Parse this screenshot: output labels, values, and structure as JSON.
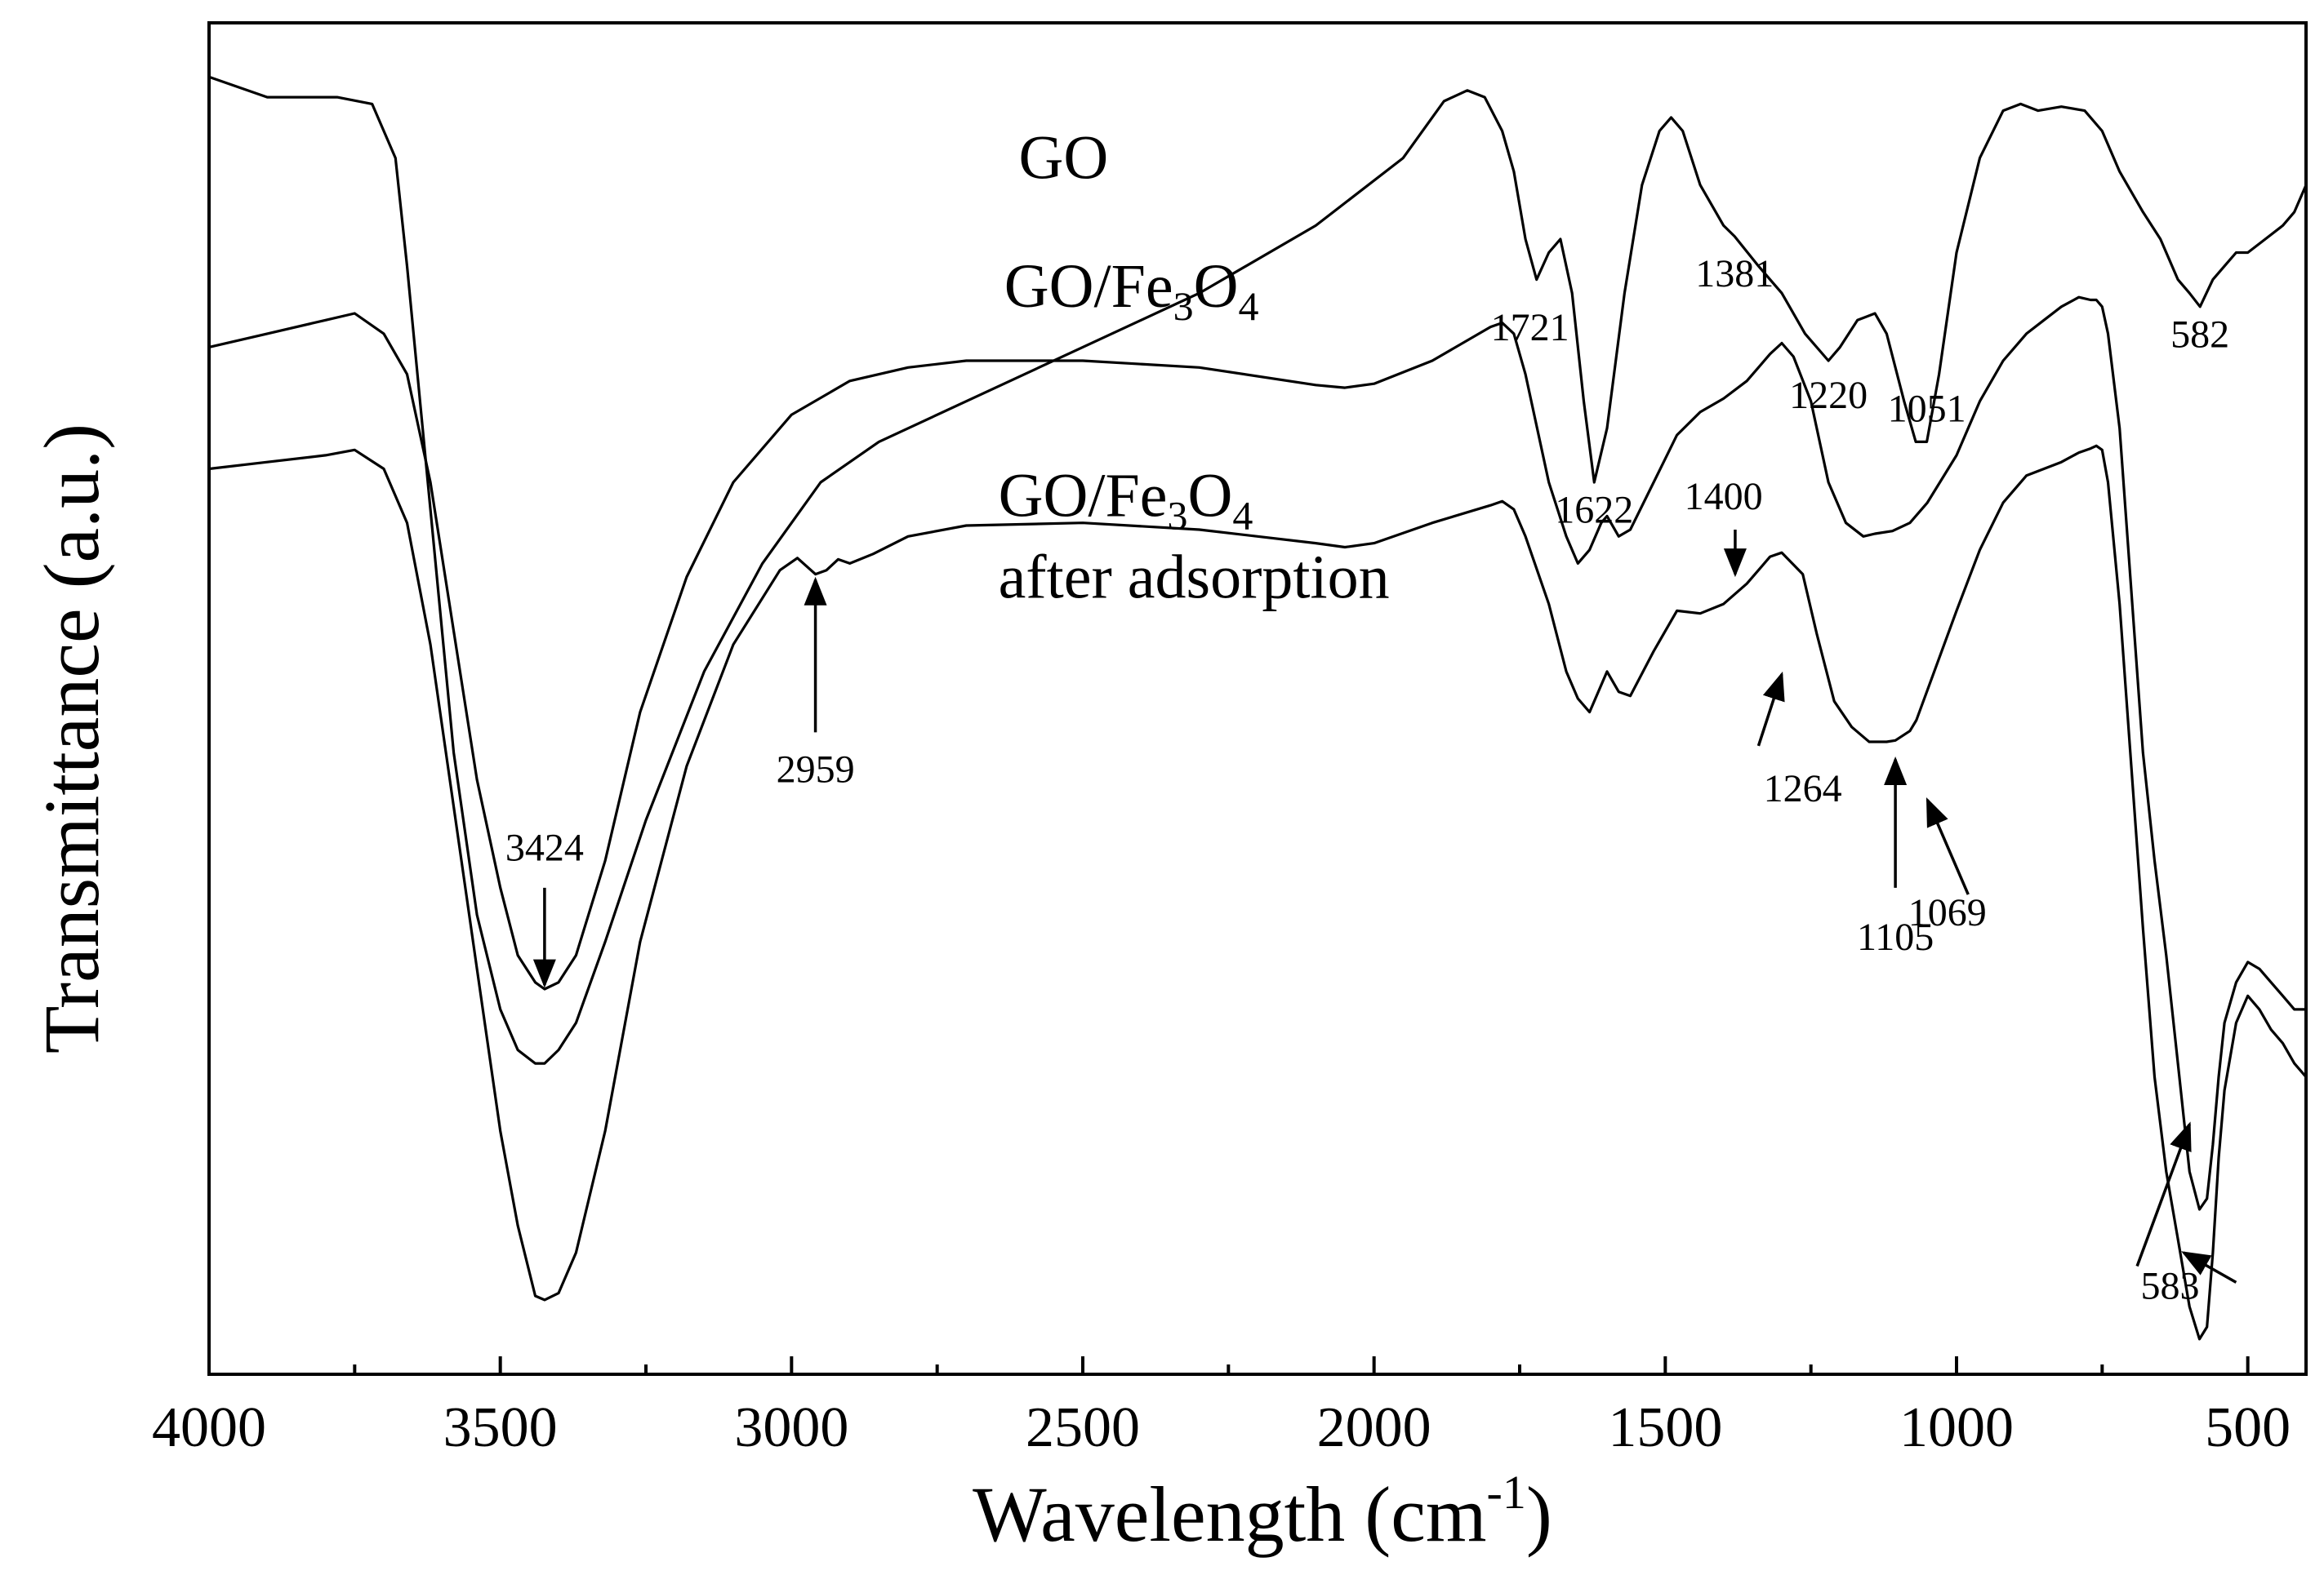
{
  "chart_data": {
    "type": "line",
    "title": "",
    "xlabel": "Wavelength (cm",
    "xlabel_sup": "-1",
    "xlabel_close": ")",
    "ylabel": "Transmittance (a.u.)",
    "xlim": [
      4000,
      400
    ],
    "ylim": [
      0,
      100
    ],
    "x_ticks": [
      4000,
      3500,
      3000,
      2500,
      2000,
      1500,
      1000,
      500
    ],
    "x_tick_labels": [
      "4000",
      "3500",
      "3000",
      "2500",
      "2000",
      "1500",
      "1000",
      "500"
    ],
    "grid": false,
    "series": [
      {
        "name": "GO",
        "label_parts": [
          {
            "text": "GO"
          }
        ],
        "x": [
          4000,
          3900,
          3780,
          3720,
          3680,
          3660,
          3620,
          3580,
          3540,
          3500,
          3470,
          3440,
          3424,
          3400,
          3370,
          3320,
          3250,
          3150,
          3050,
          2950,
          2850,
          2700,
          2500,
          2300,
          2100,
          1950,
          1880,
          1840,
          1810,
          1780,
          1760,
          1740,
          1721,
          1700,
          1680,
          1660,
          1640,
          1622,
          1600,
          1570,
          1540,
          1510,
          1490,
          1470,
          1440,
          1400,
          1381,
          1340,
          1300,
          1260,
          1220,
          1200,
          1170,
          1140,
          1120,
          1090,
          1070,
          1051,
          1030,
          1000,
          960,
          920,
          890,
          860,
          820,
          780,
          750,
          720,
          680,
          650,
          620,
          600,
          582,
          560,
          540,
          520,
          500,
          470,
          440,
          420,
          400
        ],
        "y": [
          96,
          94.5,
          94.5,
          94,
          90,
          82,
          64,
          46,
          34,
          27,
          24,
          23,
          23,
          24,
          26,
          32,
          41,
          52,
          60,
          66,
          69,
          72,
          76,
          80,
          85,
          90,
          94.2,
          95,
          94.5,
          92,
          89,
          84,
          81,
          83,
          84,
          80,
          72,
          66,
          70,
          80,
          88,
          92,
          93,
          92,
          88,
          85,
          84.2,
          82,
          80,
          77,
          75,
          76,
          78,
          78.5,
          77,
          72,
          69,
          69,
          74,
          83,
          90,
          93.5,
          94,
          93.5,
          93.8,
          93.5,
          92,
          89,
          86,
          84,
          81,
          80,
          79,
          81,
          82,
          83,
          83,
          84,
          85,
          86,
          88
        ]
      },
      {
        "name": "GO/Fe3O4",
        "label_parts": [
          {
            "text": "GO/Fe"
          },
          {
            "text": "3",
            "sub": true
          },
          {
            "text": "O"
          },
          {
            "text": "4",
            "sub": true
          }
        ],
        "x": [
          4000,
          3900,
          3800,
          3750,
          3700,
          3660,
          3620,
          3580,
          3540,
          3500,
          3470,
          3440,
          3424,
          3400,
          3370,
          3320,
          3260,
          3180,
          3100,
          3000,
          2900,
          2800,
          2700,
          2500,
          2300,
          2100,
          2050,
          2000,
          1900,
          1800,
          1780,
          1760,
          1740,
          1700,
          1670,
          1650,
          1630,
          1610,
          1600,
          1580,
          1560,
          1520,
          1480,
          1440,
          1400,
          1360,
          1320,
          1300,
          1280,
          1250,
          1220,
          1190,
          1160,
          1140,
          1110,
          1080,
          1050,
          1000,
          960,
          920,
          880,
          850,
          820,
          790,
          770,
          760,
          750,
          740,
          720,
          700,
          680,
          660,
          640,
          620,
          600,
          583,
          570,
          560,
          550,
          540,
          520,
          500,
          480,
          460,
          440,
          420,
          400
        ],
        "y": [
          76,
          77,
          78,
          78.5,
          77,
          74,
          66,
          55,
          44,
          36,
          31,
          29,
          28.5,
          29,
          31,
          38,
          49,
          59,
          66,
          71,
          73.5,
          74.5,
          75,
          75,
          74.5,
          73.2,
          73,
          73.3,
          75,
          77.5,
          77.8,
          77,
          74,
          66,
          62,
          60,
          61,
          63,
          63.5,
          62,
          62.5,
          66,
          69.5,
          71.2,
          72.2,
          73.5,
          75.5,
          76.3,
          75.3,
          72,
          66,
          63,
          62,
          62.2,
          62.4,
          63,
          64.5,
          68,
          72,
          75,
          77,
          78,
          79,
          79.7,
          79.5,
          79.5,
          79,
          77,
          70,
          58,
          46,
          38,
          31,
          23,
          15,
          12.2,
          13,
          17,
          22,
          26,
          29,
          30.5,
          30,
          29,
          28,
          27,
          27
        ]
      },
      {
        "name": "GO/Fe3O4 after adsorption",
        "label_parts": [
          {
            "text": "GO/Fe"
          },
          {
            "text": "3",
            "sub": true
          },
          {
            "text": "O"
          },
          {
            "text": "4",
            "sub": true
          }
        ],
        "label_line2": "after adsorption",
        "x": [
          4000,
          3900,
          3800,
          3750,
          3700,
          3660,
          3620,
          3580,
          3540,
          3500,
          3470,
          3440,
          3424,
          3400,
          3370,
          3320,
          3260,
          3180,
          3100,
          3020,
          2990,
          2959,
          2940,
          2920,
          2900,
          2860,
          2800,
          2700,
          2500,
          2300,
          2100,
          2050,
          2000,
          1900,
          1800,
          1780,
          1760,
          1740,
          1700,
          1670,
          1650,
          1630,
          1610,
          1600,
          1580,
          1560,
          1520,
          1480,
          1440,
          1400,
          1360,
          1320,
          1300,
          1264,
          1240,
          1210,
          1180,
          1150,
          1120,
          1105,
          1080,
          1069,
          1040,
          1000,
          960,
          920,
          880,
          850,
          820,
          790,
          770,
          760,
          750,
          740,
          720,
          700,
          680,
          660,
          640,
          620,
          600,
          583,
          570,
          560,
          550,
          540,
          520,
          500,
          480,
          460,
          440,
          420,
          400
        ],
        "y": [
          67,
          67.5,
          68,
          68.4,
          67,
          63,
          54,
          42,
          30,
          18,
          11,
          5.8,
          5.5,
          6,
          9,
          18,
          32,
          45,
          54,
          59.5,
          60.4,
          59.2,
          59.5,
          60.3,
          60,
          60.7,
          62,
          62.8,
          63,
          62.5,
          61.5,
          61.2,
          61.5,
          63,
          64.3,
          64.6,
          64,
          62,
          57,
          52,
          50,
          49,
          51,
          52,
          50.5,
          50.2,
          53.5,
          56.5,
          56.3,
          57,
          58.5,
          60.5,
          60.8,
          59.2,
          54.8,
          49.8,
          47.9,
          46.8,
          46.8,
          46.9,
          47.6,
          48.4,
          51.8,
          56.5,
          61,
          64.5,
          66.5,
          67,
          67.5,
          68.2,
          68.5,
          68.7,
          68.4,
          66,
          57,
          45,
          33,
          22,
          15,
          10,
          5,
          2.6,
          3.5,
          9,
          16,
          21,
          26,
          28,
          27,
          25.5,
          24.5,
          23,
          22
        ]
      }
    ],
    "annotations": [
      {
        "text": "1721"
      },
      {
        "text": "1622"
      },
      {
        "text": "1381"
      },
      {
        "text": "1220"
      },
      {
        "text": "1051"
      },
      {
        "text": "582"
      },
      {
        "text": "3424"
      },
      {
        "text": "1400"
      },
      {
        "text": "2959"
      },
      {
        "text": "1264"
      },
      {
        "text": "1105"
      },
      {
        "text": "1069"
      },
      {
        "text": "583"
      }
    ]
  }
}
